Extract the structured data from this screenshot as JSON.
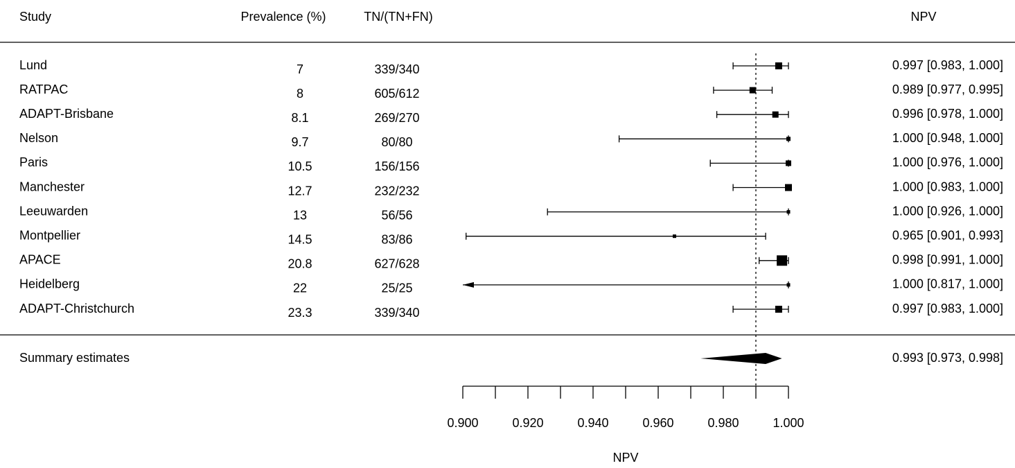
{
  "chart_data": {
    "type": "forest",
    "columns": [
      "Study",
      "Prevalence (%)",
      "TN/(TN+FN)",
      "NPV"
    ],
    "categories": [
      "Lund",
      "RATPAC",
      "ADAPT-Brisbane",
      "Nelson",
      "Paris",
      "Manchester",
      "Leeuwarden",
      "Montpellier",
      "APACE",
      "Heidelberg",
      "ADAPT-Christchurch"
    ],
    "prevalence": [
      7,
      8,
      8.1,
      9.7,
      10.5,
      12.7,
      13,
      14.5,
      20.8,
      22,
      23.3
    ],
    "tn_ratio": [
      "339/340",
      "605/612",
      "269/270",
      "80/80",
      "156/156",
      "232/232",
      "56/56",
      "83/86",
      "627/628",
      "25/25",
      "339/340"
    ],
    "values": [
      0.997,
      0.989,
      0.996,
      1.0,
      1.0,
      1.0,
      1.0,
      0.965,
      0.998,
      1.0,
      0.997
    ],
    "lower": [
      0.983,
      0.977,
      0.978,
      0.948,
      0.976,
      0.983,
      0.926,
      0.901,
      0.991,
      0.817,
      0.983
    ],
    "upper": [
      1.0,
      0.995,
      1.0,
      1.0,
      1.0,
      1.0,
      1.0,
      0.993,
      1.0,
      1.0,
      1.0
    ],
    "value_labels": [
      "0.997 [0.983, 1.000]",
      "0.989 [0.977, 0.995]",
      "0.996 [0.978, 1.000]",
      "1.000 [0.948, 1.000]",
      "1.000 [0.976, 1.000]",
      "1.000 [0.983, 1.000]",
      "1.000 [0.926, 1.000]",
      "0.965 [0.901, 0.993]",
      "0.998 [0.991, 1.000]",
      "1.000 [0.817, 1.000]",
      "0.997 [0.983, 1.000]"
    ],
    "weights": [
      10,
      9,
      9,
      6,
      8,
      10,
      5,
      5,
      15,
      5,
      10
    ],
    "summary": {
      "label": "Summary estimates",
      "value": 0.993,
      "lower": 0.973,
      "upper": 0.998,
      "value_label": "0.993 [0.973, 0.998]"
    },
    "refline": 0.99,
    "xlabel": "NPV",
    "xlim": [
      0.9,
      1.0
    ],
    "xticks": [
      {
        "value": 0.9,
        "label": "0.900"
      },
      {
        "value": 0.92,
        "label": "0.920"
      },
      {
        "value": 0.94,
        "label": "0.940"
      },
      {
        "value": 0.96,
        "label": "0.960"
      },
      {
        "value": 0.98,
        "label": "0.980"
      },
      {
        "value": 1.0,
        "label": "1.000"
      }
    ],
    "xminor_ticks": [
      0.91,
      0.93,
      0.95,
      0.97,
      0.99
    ],
    "color": "#000000"
  }
}
